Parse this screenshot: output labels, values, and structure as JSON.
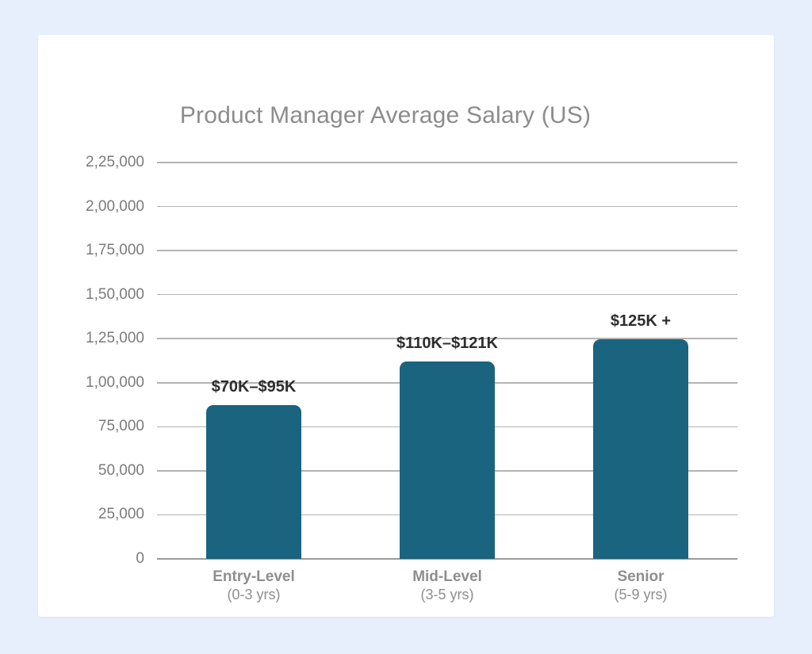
{
  "page": {
    "background_color": "#E6EFFB",
    "card_color": "#FFFFFF"
  },
  "chart": {
    "title": "Product Manager Average Salary (US)"
  },
  "chart_data": {
    "type": "bar",
    "title": "Product Manager Average Salary (US)",
    "categories": [
      "Entry-Level",
      "Mid-Level",
      "Senior"
    ],
    "category_sublabels": [
      "(0-3 yrs)",
      "(3-5 yrs)",
      "(5-9 yrs)"
    ],
    "values": [
      87500,
      112000,
      124500
    ],
    "bar_labels": [
      "$70K–$95K",
      "$110K–$121K",
      "$125K +"
    ],
    "xlabel": "",
    "ylabel": "",
    "ylim": [
      0,
      225000
    ],
    "ytick_step": 25000,
    "ytick_labels": [
      "0",
      "25,000",
      "50,000",
      "75,000",
      "1,00,000",
      "1,25,000",
      "1,50,000",
      "1,75,000",
      "2,00,000",
      "2,25,000"
    ],
    "grid": true,
    "legend": false,
    "bar_color": "#1A6480",
    "grid_color": "#B3B3B3",
    "axis_line_color": "#9A9A9A",
    "tick_label_color": "#7B7B7B",
    "bar_label_color": "#2D2D2D",
    "category_label_color": "#8E8E8E",
    "title_color": "#8C8C8C"
  }
}
